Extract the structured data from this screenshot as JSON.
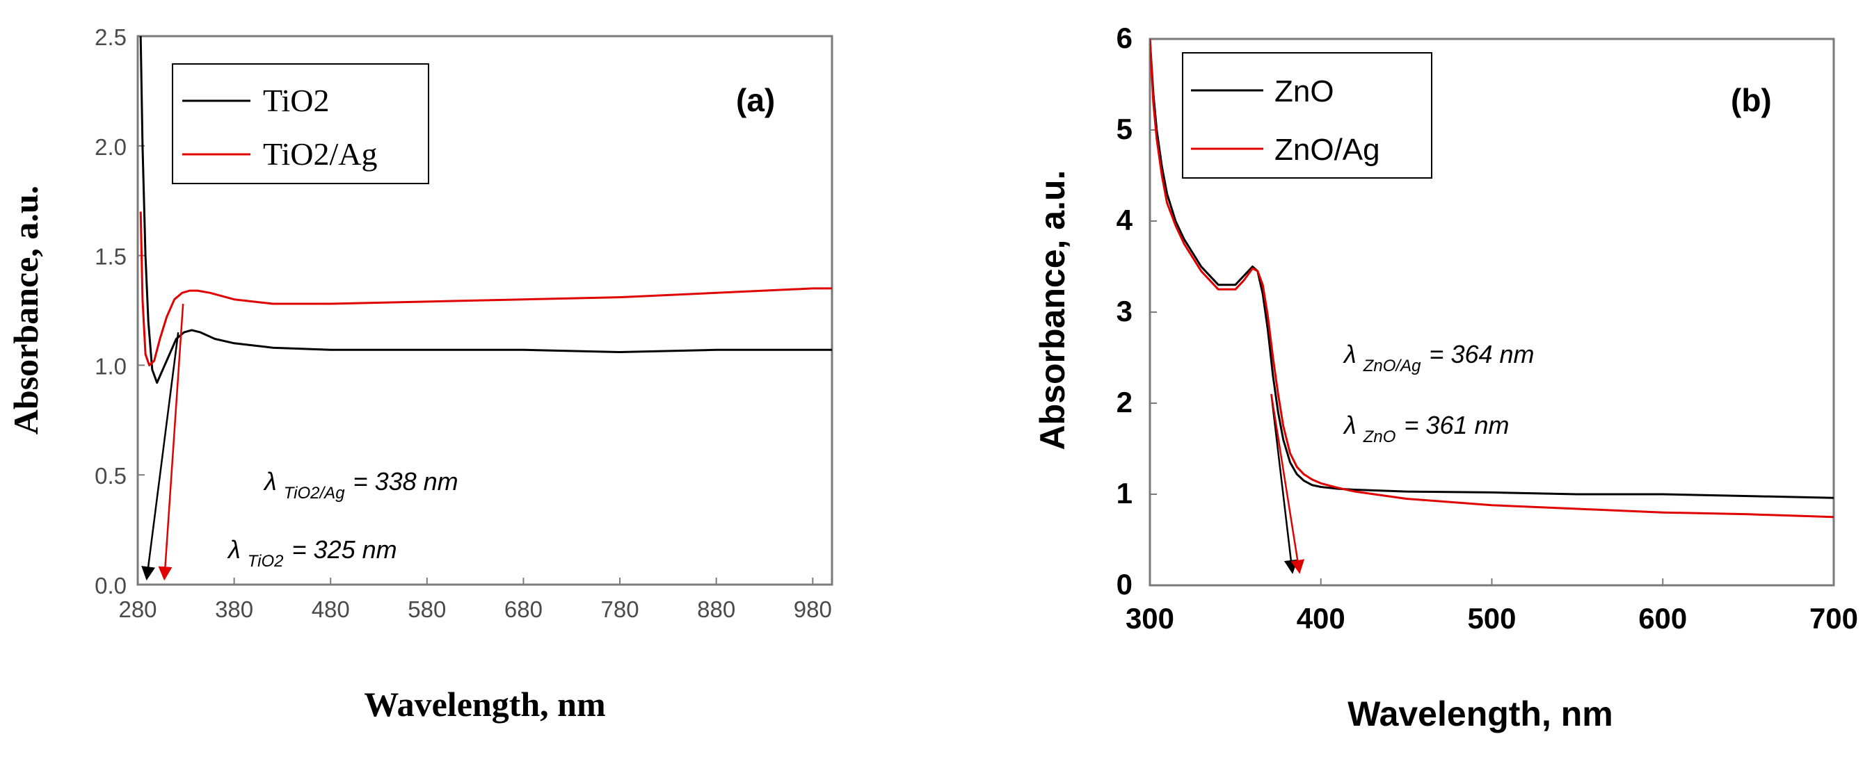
{
  "chart_data": [
    {
      "panel": "(a)",
      "type": "line",
      "xlabel": "Wavelength, nm",
      "ylabel": "Absorbance, a.u.",
      "xlim": [
        280,
        1000
      ],
      "ylim": [
        0,
        2.5
      ],
      "x_ticks": [
        280,
        380,
        480,
        580,
        680,
        780,
        880,
        980
      ],
      "y_ticks": [
        "0.0",
        "0.5",
        "1.0",
        "1.5",
        "2.0",
        "2.5"
      ],
      "legend": [
        "TiO2",
        "TiO2/Ag"
      ],
      "legend_position": "top-left",
      "annotations": [
        {
          "lambda": "λ",
          "sub": "TiO2/Ag",
          "text": "= 338 nm"
        },
        {
          "lambda": "λ",
          "sub": "TiO2",
          "text": "= 325 nm"
        }
      ],
      "edge_arrows": [
        {
          "series": "TiO2",
          "from": [
            322,
            1.15
          ],
          "to": [
            290,
            0.05
          ],
          "color": "#000000"
        },
        {
          "series": "TiO2/Ag",
          "from": [
            327,
            1.28
          ],
          "to": [
            308,
            0.05
          ],
          "color": "#e00000"
        }
      ],
      "series": [
        {
          "name": "TiO2",
          "color": "#000000",
          "x": [
            283,
            285,
            288,
            291,
            295,
            300,
            306,
            313,
            320,
            328,
            336,
            345,
            360,
            380,
            420,
            480,
            580,
            680,
            780,
            880,
            980,
            1000
          ],
          "y": [
            2.5,
            2.0,
            1.5,
            1.2,
            0.98,
            0.92,
            0.98,
            1.05,
            1.12,
            1.15,
            1.16,
            1.15,
            1.12,
            1.1,
            1.08,
            1.07,
            1.07,
            1.07,
            1.06,
            1.07,
            1.07,
            1.07
          ]
        },
        {
          "name": "TiO2/Ag",
          "color": "#e00000",
          "x": [
            283,
            285,
            288,
            292,
            297,
            303,
            310,
            318,
            326,
            334,
            342,
            355,
            380,
            420,
            480,
            580,
            680,
            780,
            880,
            980,
            1000
          ],
          "y": [
            1.7,
            1.3,
            1.05,
            1.0,
            1.02,
            1.12,
            1.22,
            1.3,
            1.33,
            1.34,
            1.34,
            1.33,
            1.3,
            1.28,
            1.28,
            1.29,
            1.3,
            1.31,
            1.33,
            1.35,
            1.35
          ]
        }
      ]
    },
    {
      "panel": "(b)",
      "type": "line",
      "xlabel": "Wavelength, nm",
      "ylabel": "Absorbance, a.u.",
      "xlim": [
        300,
        700
      ],
      "ylim": [
        0,
        6
      ],
      "x_ticks": [
        300,
        400,
        500,
        600,
        700
      ],
      "y_ticks": [
        "0",
        "1",
        "2",
        "3",
        "4",
        "5",
        "6"
      ],
      "legend": [
        "ZnO",
        "ZnO/Ag"
      ],
      "legend_position": "top-left",
      "annotations": [
        {
          "lambda": "λ",
          "sub": "ZnO/Ag",
          "text": "= 364 nm"
        },
        {
          "lambda": "λ",
          "sub": "ZnO",
          "text": "= 361 nm"
        }
      ],
      "edge_arrows": [
        {
          "series": "ZnO",
          "from": [
            371,
            2.1
          ],
          "to": [
            383,
            0.2
          ],
          "color": "#000000"
        },
        {
          "series": "ZnO/Ag",
          "from": [
            371,
            2.1
          ],
          "to": [
            387,
            0.2
          ],
          "color": "#e00000"
        }
      ],
      "series": [
        {
          "name": "ZnO",
          "color": "#000000",
          "x": [
            300,
            302,
            304,
            307,
            310,
            315,
            320,
            330,
            340,
            350,
            355,
            360,
            363,
            366,
            369,
            372,
            375,
            378,
            382,
            386,
            390,
            395,
            400,
            410,
            420,
            450,
            500,
            550,
            600,
            650,
            700
          ],
          "y": [
            6.0,
            5.4,
            5.0,
            4.6,
            4.3,
            4.0,
            3.8,
            3.5,
            3.3,
            3.3,
            3.4,
            3.5,
            3.45,
            3.2,
            2.8,
            2.3,
            1.9,
            1.6,
            1.35,
            1.22,
            1.15,
            1.1,
            1.08,
            1.06,
            1.05,
            1.03,
            1.02,
            1.0,
            1.0,
            0.98,
            0.96
          ]
        },
        {
          "name": "ZnO/Ag",
          "color": "#e00000",
          "x": [
            300,
            302,
            304,
            307,
            310,
            315,
            320,
            330,
            340,
            350,
            355,
            360,
            363,
            366,
            369,
            372,
            375,
            378,
            382,
            386,
            390,
            395,
            400,
            410,
            420,
            450,
            500,
            550,
            600,
            650,
            700
          ],
          "y": [
            6.0,
            5.3,
            4.9,
            4.5,
            4.2,
            3.95,
            3.75,
            3.45,
            3.25,
            3.25,
            3.35,
            3.48,
            3.45,
            3.3,
            2.95,
            2.5,
            2.1,
            1.75,
            1.45,
            1.3,
            1.22,
            1.16,
            1.12,
            1.07,
            1.03,
            0.95,
            0.88,
            0.84,
            0.8,
            0.78,
            0.75
          ]
        }
      ]
    }
  ]
}
